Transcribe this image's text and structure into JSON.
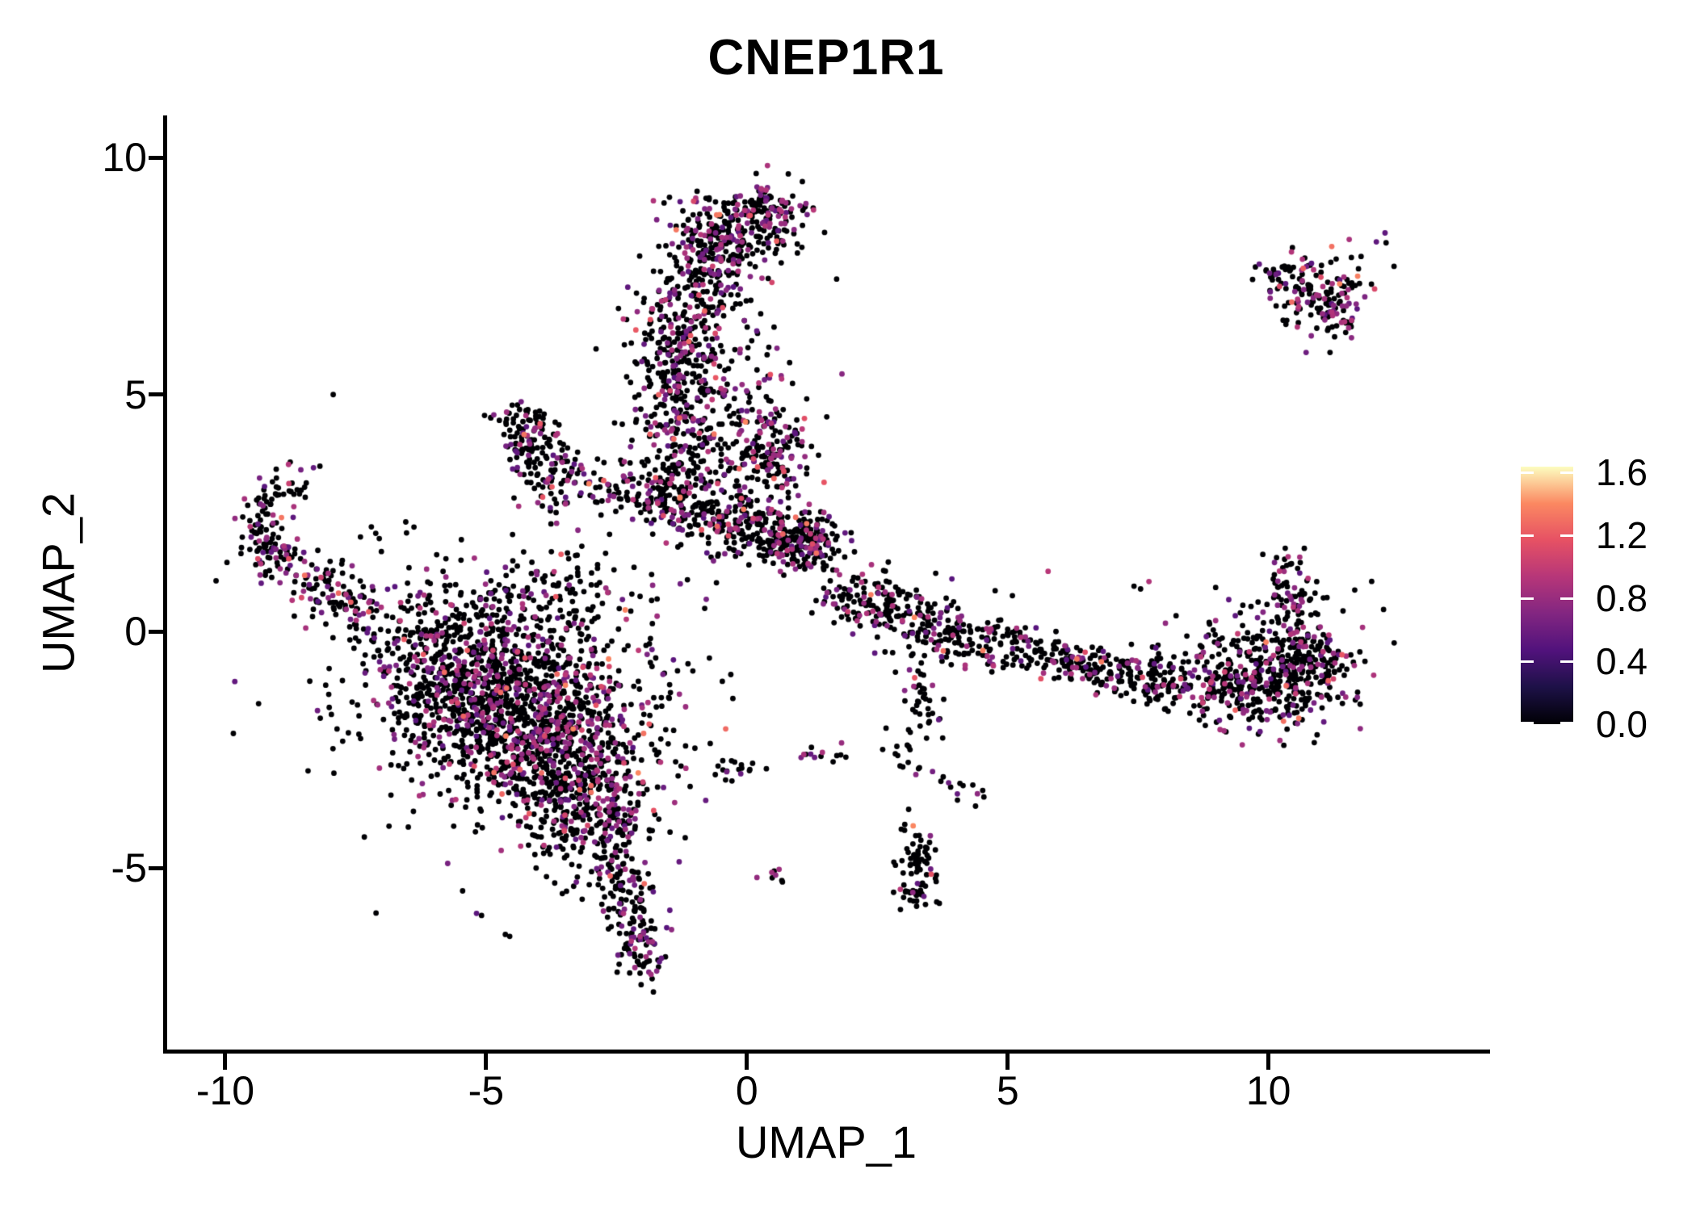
{
  "title": "CNEP1R1",
  "chart_data": {
    "type": "scatter",
    "subtype": "umap-feature-plot",
    "title": "CNEP1R1",
    "xlabel": "UMAP_1",
    "ylabel": "UMAP_2",
    "x_ticks": [
      -10,
      -5,
      0,
      5,
      10
    ],
    "y_ticks": [
      -5,
      0,
      5,
      10
    ],
    "xlim": [
      -11.13,
      14.17
    ],
    "ylim": [
      -8.86,
      10.89
    ],
    "grid": false,
    "background": "#ffffff",
    "axis_color": "#000000",
    "point_radius_px": 3.4,
    "color_scale": {
      "name": "magma",
      "palette": [
        "#000004",
        "#1d1147",
        "#51127c",
        "#822681",
        "#b63679",
        "#e65164",
        "#fb8861",
        "#fcfdbf"
      ],
      "zero_color": "#000004",
      "max_value": 1.636
    },
    "legend": {
      "position": "right",
      "ticks": [
        0.0,
        0.4,
        0.8,
        1.2,
        1.6
      ],
      "labels": [
        "0.0",
        "0.4",
        "0.8",
        "1.2",
        "1.6"
      ],
      "max": 1.636
    },
    "expression_model": {
      "colored_fraction_default": 0.26,
      "base": 0.5,
      "spread": 0.45,
      "boost_prob": 0.1,
      "boost": 0.45,
      "high_boost_prob": 0.015,
      "high_boost": 0.35
    },
    "clusters": [
      {
        "name": "main-blob-core",
        "type": "gauss",
        "c": [
          -4.4,
          -1.6
        ],
        "s": [
          1.3,
          1.05
        ],
        "rot": -15,
        "n": 1250,
        "p": 0.26
      },
      {
        "name": "main-blob-lower",
        "type": "gauss",
        "c": [
          -3.4,
          -3.2
        ],
        "s": [
          0.75,
          0.85
        ],
        "rot": -20,
        "n": 400,
        "p": 0.26
      },
      {
        "name": "main-blob-left",
        "type": "gauss",
        "c": [
          -5.6,
          -0.9
        ],
        "s": [
          0.9,
          0.7
        ],
        "rot": -10,
        "n": 260,
        "p": 0.24
      },
      {
        "name": "main-blob-upper-fringe",
        "type": "band",
        "pts": [
          [
            -6.6,
            0.1
          ],
          [
            -5.4,
            0.5
          ],
          [
            -4.2,
            0.8
          ],
          [
            -3.0,
            1.0
          ]
        ],
        "w": 0.45,
        "n": 170,
        "p": 0.24
      },
      {
        "name": "main-blob-tip",
        "type": "gauss",
        "c": [
          -2.6,
          -4.2
        ],
        "s": [
          0.5,
          0.6
        ],
        "n": 130,
        "p": 0.26
      },
      {
        "name": "main-blob-halo",
        "type": "gauss",
        "c": [
          -4.5,
          -1.5
        ],
        "s": [
          2.2,
          1.8
        ],
        "n": 80,
        "p": 0.2
      },
      {
        "name": "bottom-tail",
        "type": "band",
        "pts": [
          [
            -2.45,
            -4.9
          ],
          [
            -2.15,
            -5.8
          ],
          [
            -2.0,
            -6.7
          ],
          [
            -1.85,
            -7.3
          ]
        ],
        "w": 0.27,
        "n": 150,
        "p": 0.28
      },
      {
        "name": "hook-curve",
        "type": "band",
        "pts": [
          [
            -8.45,
            3.3
          ],
          [
            -9.05,
            2.95
          ],
          [
            -9.35,
            2.35
          ],
          [
            -9.25,
            1.8
          ],
          [
            -8.85,
            1.5
          ]
        ],
        "w": 0.22,
        "n": 95,
        "p": 0.24
      },
      {
        "name": "hook-clump",
        "type": "gauss",
        "c": [
          -8.95,
          1.55
        ],
        "s": [
          0.38,
          0.3
        ],
        "n": 55,
        "p": 0.3
      },
      {
        "name": "hook-tail",
        "type": "band",
        "pts": [
          [
            -8.4,
            1.15
          ],
          [
            -7.7,
            0.65
          ],
          [
            -7.05,
            0.2
          ]
        ],
        "w": 0.3,
        "n": 105,
        "p": 0.24
      },
      {
        "name": "hook-sparse",
        "type": "gauss",
        "c": [
          -7.6,
          1.1
        ],
        "s": [
          0.8,
          0.7
        ],
        "n": 14,
        "p": 0.15
      },
      {
        "name": "lambda-apex",
        "type": "gauss",
        "c": [
          -4.3,
          4.3
        ],
        "s": [
          0.33,
          0.3
        ],
        "n": 60,
        "p": 0.3
      },
      {
        "name": "lambda-left-leg",
        "type": "band",
        "pts": [
          [
            -4.25,
            4.1
          ],
          [
            -4.0,
            3.3
          ],
          [
            -3.7,
            2.5
          ]
        ],
        "w": 0.26,
        "n": 75,
        "p": 0.3
      },
      {
        "name": "lambda-right-leg",
        "type": "band",
        "pts": [
          [
            -4.1,
            4.0
          ],
          [
            -3.5,
            3.5
          ],
          [
            -2.95,
            3.15
          ]
        ],
        "w": 0.27,
        "n": 65,
        "p": 0.3
      },
      {
        "name": "lambda-bridge",
        "type": "band",
        "pts": [
          [
            -2.8,
            3.1
          ],
          [
            -2.1,
            2.95
          ]
        ],
        "w": 0.3,
        "n": 25,
        "p": 0.25
      },
      {
        "name": "column-lower-band",
        "type": "band",
        "pts": [
          [
            -2.0,
            3.0
          ],
          [
            -1.1,
            2.55
          ],
          [
            -0.2,
            2.2
          ],
          [
            0.7,
            1.9
          ],
          [
            1.35,
            1.75
          ]
        ],
        "w": 0.3,
        "n": 430,
        "p": 0.26
      },
      {
        "name": "column-band-tip",
        "type": "gauss",
        "c": [
          1.3,
          1.95
        ],
        "s": [
          0.33,
          0.3
        ],
        "n": 85,
        "p": 0.35
      },
      {
        "name": "column-mid",
        "type": "gauss",
        "c": [
          -1.4,
          4.4
        ],
        "s": [
          0.42,
          0.85
        ],
        "n": 200,
        "p": 0.3
      },
      {
        "name": "column-mid-right",
        "type": "gauss",
        "c": [
          -0.55,
          4.7
        ],
        "s": [
          0.5,
          1.1
        ],
        "n": 110,
        "p": 0.25
      },
      {
        "name": "column-upper",
        "type": "gauss",
        "c": [
          -1.3,
          6.3
        ],
        "s": [
          0.45,
          0.75
        ],
        "n": 190,
        "p": 0.32
      },
      {
        "name": "column-neck",
        "type": "gauss",
        "c": [
          -0.75,
          7.5
        ],
        "s": [
          0.4,
          0.45
        ],
        "n": 100,
        "p": 0.28
      },
      {
        "name": "top-blob",
        "type": "gauss",
        "c": [
          -0.5,
          8.4
        ],
        "s": [
          0.55,
          0.42
        ],
        "n": 210,
        "p": 0.3
      },
      {
        "name": "top-blob-right",
        "type": "gauss",
        "c": [
          0.45,
          8.95
        ],
        "s": [
          0.33,
          0.28
        ],
        "n": 85,
        "p": 0.5
      },
      {
        "name": "top-blob-spray",
        "type": "gauss",
        "c": [
          0.3,
          8.4
        ],
        "s": [
          0.5,
          0.4
        ],
        "n": 45,
        "p": 0.25
      },
      {
        "name": "right-of-column-clump",
        "type": "gauss",
        "c": [
          0.5,
          3.8
        ],
        "s": [
          0.4,
          0.5
        ],
        "n": 160,
        "p": 0.45
      },
      {
        "name": "purple-pair",
        "type": "gauss",
        "c": [
          0.5,
          5.37
        ],
        "s": [
          0.08,
          0.07
        ],
        "n": 3,
        "p": 0.85
      },
      {
        "name": "column-fill-spray",
        "type": "gauss",
        "c": [
          -0.1,
          5.5
        ],
        "s": [
          0.7,
          1.5
        ],
        "n": 70,
        "p": 0.25
      },
      {
        "name": "column-base-spray",
        "type": "gauss",
        "c": [
          -1.0,
          2.8
        ],
        "s": [
          1.0,
          0.4
        ],
        "n": 50,
        "p": 0.25
      },
      {
        "name": "right-band-seg1",
        "type": "band",
        "pts": [
          [
            1.75,
            0.75
          ],
          [
            2.7,
            0.4
          ],
          [
            3.6,
            0.05
          ]
        ],
        "w": 0.3,
        "n": 170,
        "p": 0.22
      },
      {
        "name": "right-band-knot",
        "type": "gauss",
        "c": [
          3.9,
          -0.05
        ],
        "s": [
          0.35,
          0.3
        ],
        "n": 70,
        "p": 0.22
      },
      {
        "name": "right-band-ring",
        "type": "ring",
        "c": [
          4.95,
          -0.3
        ],
        "r": 0.48,
        "s": 0.15,
        "ry": 0.75,
        "n": 80,
        "p": 0.22
      },
      {
        "name": "right-band-seg2",
        "type": "band",
        "pts": [
          [
            5.55,
            -0.5
          ],
          [
            6.5,
            -0.75
          ],
          [
            7.5,
            -1.0
          ],
          [
            8.3,
            -1.2
          ]
        ],
        "w": 0.27,
        "n": 230,
        "p": 0.22
      },
      {
        "name": "right-mass",
        "type": "gauss",
        "c": [
          9.5,
          -1.05
        ],
        "s": [
          0.8,
          0.5
        ],
        "rot": -8,
        "n": 380,
        "p": 0.24
      },
      {
        "name": "right-mass-end",
        "type": "gauss",
        "c": [
          10.8,
          -0.7
        ],
        "s": [
          0.45,
          0.45
        ],
        "n": 190,
        "p": 0.26
      },
      {
        "name": "right-upturn",
        "type": "band",
        "pts": [
          [
            10.45,
            0.0
          ],
          [
            10.55,
            0.8
          ],
          [
            10.3,
            1.55
          ]
        ],
        "w": 0.22,
        "n": 65,
        "p": 0.3
      },
      {
        "name": "right-mass-spray",
        "type": "gauss",
        "c": [
          10.3,
          0.5
        ],
        "s": [
          0.8,
          0.4
        ],
        "n": 35,
        "p": 0.25
      },
      {
        "name": "seg1-top-spray",
        "type": "gauss",
        "c": [
          3.0,
          0.9
        ],
        "s": [
          1.0,
          0.3
        ],
        "n": 30,
        "p": 0.2
      },
      {
        "name": "trickle-down",
        "type": "band",
        "pts": [
          [
            3.2,
            -0.65
          ],
          [
            3.3,
            -1.5
          ],
          [
            3.5,
            -2.3
          ]
        ],
        "w": 0.17,
        "n": 40,
        "p": 0.2
      },
      {
        "name": "diagonal-line",
        "type": "band",
        "pts": [
          [
            2.6,
            -2.35
          ],
          [
            3.4,
            -2.9
          ],
          [
            4.2,
            -3.3
          ],
          [
            4.65,
            -3.5
          ]
        ],
        "w": 0.14,
        "n": 28,
        "p": 0.18
      },
      {
        "name": "comet",
        "type": "band",
        "pts": [
          [
            3.35,
            -4.5
          ],
          [
            3.3,
            -5.1
          ],
          [
            3.2,
            -5.75
          ]
        ],
        "w": 0.17,
        "n": 55,
        "p": 0.12
      },
      {
        "name": "comet-head",
        "type": "gauss",
        "c": [
          3.35,
          -4.75
        ],
        "s": [
          0.22,
          0.3
        ],
        "n": 25,
        "p": 0.12
      },
      {
        "name": "small-pair-cluster",
        "type": "gauss",
        "c": [
          0.62,
          -5.2
        ],
        "s": [
          0.13,
          0.1
        ],
        "n": 8,
        "p": 0.35
      },
      {
        "name": "sparse-hline",
        "type": "band",
        "pts": [
          [
            -0.6,
            -3.0
          ],
          [
            0.4,
            -2.75
          ],
          [
            1.3,
            -2.6
          ],
          [
            2.0,
            -2.5
          ]
        ],
        "w": 0.13,
        "n": 30,
        "p": 0.2
      },
      {
        "name": "isolated-dots",
        "type": "gauss",
        "c": [
          3.0,
          -4.1
        ],
        "s": [
          0.25,
          0.25
        ],
        "n": 4,
        "p": 0.2
      },
      {
        "name": "topright-main",
        "type": "gauss",
        "c": [
          11.0,
          7.1
        ],
        "s": [
          0.5,
          0.45
        ],
        "rot": -30,
        "n": 140,
        "p": 0.35
      },
      {
        "name": "topright-arm",
        "type": "band",
        "pts": [
          [
            9.75,
            7.6
          ],
          [
            10.4,
            7.45
          ]
        ],
        "w": 0.14,
        "n": 22,
        "p": 0.35
      },
      {
        "name": "topright-tail",
        "type": "band",
        "pts": [
          [
            11.25,
            6.7
          ],
          [
            11.5,
            6.35
          ]
        ],
        "w": 0.15,
        "n": 18,
        "p": 0.3
      },
      {
        "name": "topright-outlier",
        "type": "gauss",
        "c": [
          12.2,
          8.22
        ],
        "s": [
          0.12,
          0.1
        ],
        "n": 3,
        "p": 0.5
      },
      {
        "name": "topright-dot",
        "type": "gauss",
        "c": [
          11.75,
          7.9
        ],
        "s": [
          0.1,
          0.1
        ],
        "n": 2,
        "p": 0.3
      },
      {
        "name": "mid-sparse-pair",
        "type": "gauss",
        "c": [
          7.5,
          1.05
        ],
        "s": [
          0.15,
          0.1
        ],
        "n": 3,
        "p": 0.3
      },
      {
        "name": "mid-sparse-uniform",
        "type": "uniform",
        "box": [
          -7.0,
          0.2,
          -0.2,
          1.4
        ],
        "n": 18,
        "p": 0.2
      }
    ]
  }
}
